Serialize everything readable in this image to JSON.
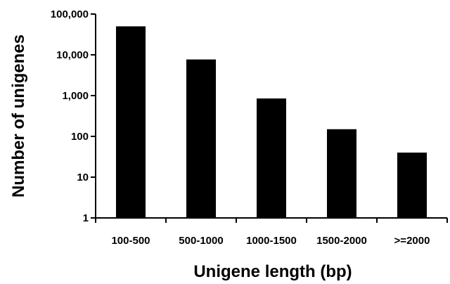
{
  "chart_data": {
    "type": "bar",
    "y_scale": "log",
    "categories": [
      "100-500",
      "500-1000",
      "1000-1500",
      "1500-2000",
      ">=2000"
    ],
    "values": [
      50000,
      7700,
      850,
      150,
      40
    ],
    "xlabel": "Unigene length (bp)",
    "ylabel": "Number of unigenes",
    "ylim": [
      1,
      100000
    ],
    "y_ticks": [
      1,
      10,
      100,
      1000,
      10000,
      100000
    ],
    "y_tick_labels": [
      "1",
      "10",
      "100",
      "1,000",
      "10,000",
      "100,000"
    ],
    "grid": false,
    "legend": "none",
    "bar_color": "#000000"
  }
}
